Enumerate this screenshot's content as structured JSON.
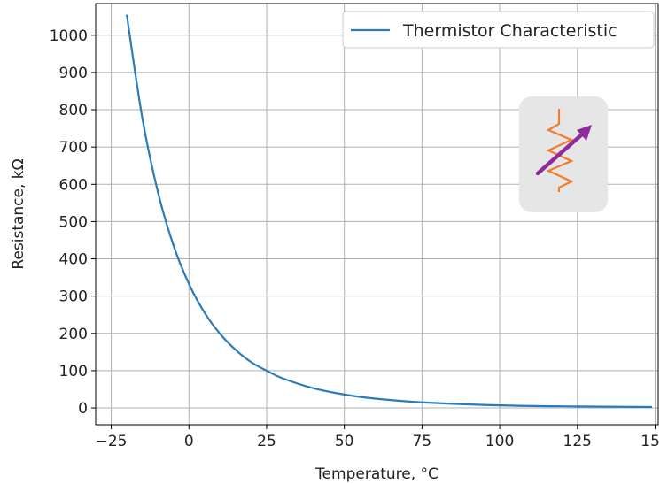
{
  "chart_data": {
    "type": "line",
    "title": "",
    "xlabel": "Temperature, °C",
    "ylabel": "Resistance, kΩ",
    "xlim": [
      -30,
      151
    ],
    "ylim": [
      -45,
      1085
    ],
    "grid": true,
    "legend_position": "top-right",
    "x_ticks": [
      -25,
      0,
      25,
      50,
      75,
      100,
      125,
      150
    ],
    "x_tick_labels": [
      "−25",
      "0",
      "25",
      "50",
      "75",
      "100",
      "125",
      "150"
    ],
    "y_ticks": [
      0,
      100,
      200,
      300,
      400,
      500,
      600,
      700,
      800,
      900,
      1000
    ],
    "y_tick_labels": [
      "0",
      "100",
      "200",
      "300",
      "400",
      "500",
      "600",
      "700",
      "800",
      "900",
      "1000"
    ],
    "series": [
      {
        "name": "Thermistor Characteristic",
        "color": "#2b7bba",
        "x": [
          -20,
          -15,
          -10,
          -5,
          0,
          5,
          10,
          15,
          20,
          25,
          30,
          40,
          50,
          60,
          75,
          100,
          125,
          149
        ],
        "y": [
          1055,
          778,
          580,
          437,
          333,
          256,
          199,
          156,
          123,
          100,
          80,
          53,
          36,
          25,
          15,
          7,
          4,
          2.5
        ]
      }
    ]
  },
  "icon": {
    "name": "variable-resistor-icon",
    "background": "#e6e6e6",
    "zigzag_color": "#f07c2c",
    "arrow_color": "#8e2a9c"
  }
}
